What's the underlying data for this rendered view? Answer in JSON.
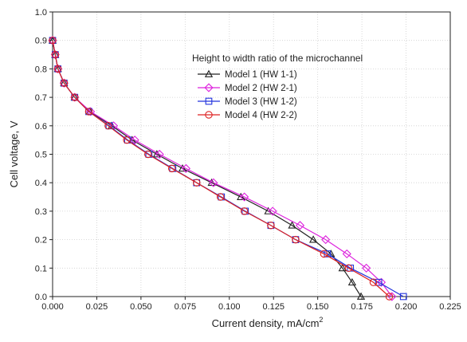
{
  "chart_data": {
    "type": "line",
    "title": "",
    "xlabel": "Current density, mA/cm",
    "xlabel_superscript": "2",
    "ylabel": "Cell voltage, V",
    "xlim": [
      0,
      0.225
    ],
    "ylim": [
      0,
      1.0
    ],
    "x_ticks": [
      "0.000",
      "0.025",
      "0.050",
      "0.075",
      "0.100",
      "0.125",
      "0.150",
      "0.175",
      "0.200",
      "0.225"
    ],
    "y_ticks": [
      "0.0",
      "0.1",
      "0.2",
      "0.3",
      "0.4",
      "0.5",
      "0.6",
      "0.7",
      "0.8",
      "0.9",
      "1.0"
    ],
    "grid": true,
    "legend_title": "Height to width ratio of the microchannel",
    "legend_position": "top-right",
    "series": [
      {
        "name": "Model 1 (HW 1-1)",
        "color": "#222222",
        "marker": "triangle",
        "points": [
          [
            0.0,
            0.9
          ],
          [
            0.0015,
            0.85
          ],
          [
            0.003,
            0.8
          ],
          [
            0.0065,
            0.75
          ],
          [
            0.0125,
            0.7
          ],
          [
            0.021,
            0.65
          ],
          [
            0.0335,
            0.6
          ],
          [
            0.045,
            0.55
          ],
          [
            0.059,
            0.5
          ],
          [
            0.0735,
            0.45
          ],
          [
            0.09,
            0.4
          ],
          [
            0.1065,
            0.35
          ],
          [
            0.122,
            0.3
          ],
          [
            0.1355,
            0.25
          ],
          [
            0.1475,
            0.2
          ],
          [
            0.1575,
            0.15
          ],
          [
            0.164,
            0.1
          ],
          [
            0.1695,
            0.05
          ],
          [
            0.1745,
            0.0
          ]
        ]
      },
      {
        "name": "Model 2 (HW 2-1)",
        "color": "#dd22dd",
        "marker": "diamond",
        "points": [
          [
            0.0,
            0.9
          ],
          [
            0.0015,
            0.85
          ],
          [
            0.003,
            0.8
          ],
          [
            0.0065,
            0.75
          ],
          [
            0.0125,
            0.7
          ],
          [
            0.0215,
            0.65
          ],
          [
            0.0345,
            0.6
          ],
          [
            0.0465,
            0.55
          ],
          [
            0.0605,
            0.5
          ],
          [
            0.0755,
            0.45
          ],
          [
            0.091,
            0.4
          ],
          [
            0.1085,
            0.35
          ],
          [
            0.1245,
            0.3
          ],
          [
            0.14,
            0.25
          ],
          [
            0.1545,
            0.2
          ],
          [
            0.1665,
            0.15
          ],
          [
            0.1775,
            0.1
          ],
          [
            0.186,
            0.05
          ],
          [
            0.192,
            0.0
          ]
        ]
      },
      {
        "name": "Model 3 (HW 1-2)",
        "color": "#2233dd",
        "marker": "square",
        "points": [
          [
            0.0,
            0.9
          ],
          [
            0.0015,
            0.85
          ],
          [
            0.003,
            0.8
          ],
          [
            0.0065,
            0.75
          ],
          [
            0.0125,
            0.7
          ],
          [
            0.0205,
            0.65
          ],
          [
            0.032,
            0.6
          ],
          [
            0.0425,
            0.55
          ],
          [
            0.0545,
            0.5
          ],
          [
            0.068,
            0.45
          ],
          [
            0.0815,
            0.4
          ],
          [
            0.0955,
            0.35
          ],
          [
            0.109,
            0.3
          ],
          [
            0.1235,
            0.25
          ],
          [
            0.1375,
            0.2
          ],
          [
            0.1555,
            0.15
          ],
          [
            0.1685,
            0.1
          ],
          [
            0.1845,
            0.05
          ],
          [
            0.1985,
            0.0
          ]
        ]
      },
      {
        "name": "Model 4 (HW 2-2)",
        "color": "#dd2222",
        "marker": "circle",
        "points": [
          [
            0.0,
            0.9
          ],
          [
            0.0015,
            0.85
          ],
          [
            0.003,
            0.8
          ],
          [
            0.0065,
            0.75
          ],
          [
            0.0125,
            0.7
          ],
          [
            0.0205,
            0.65
          ],
          [
            0.0315,
            0.6
          ],
          [
            0.042,
            0.55
          ],
          [
            0.054,
            0.5
          ],
          [
            0.0675,
            0.45
          ],
          [
            0.0815,
            0.4
          ],
          [
            0.095,
            0.35
          ],
          [
            0.1085,
            0.3
          ],
          [
            0.1235,
            0.25
          ],
          [
            0.1375,
            0.2
          ],
          [
            0.1535,
            0.15
          ],
          [
            0.1675,
            0.1
          ],
          [
            0.1815,
            0.05
          ],
          [
            0.1905,
            0.0
          ]
        ]
      }
    ]
  }
}
